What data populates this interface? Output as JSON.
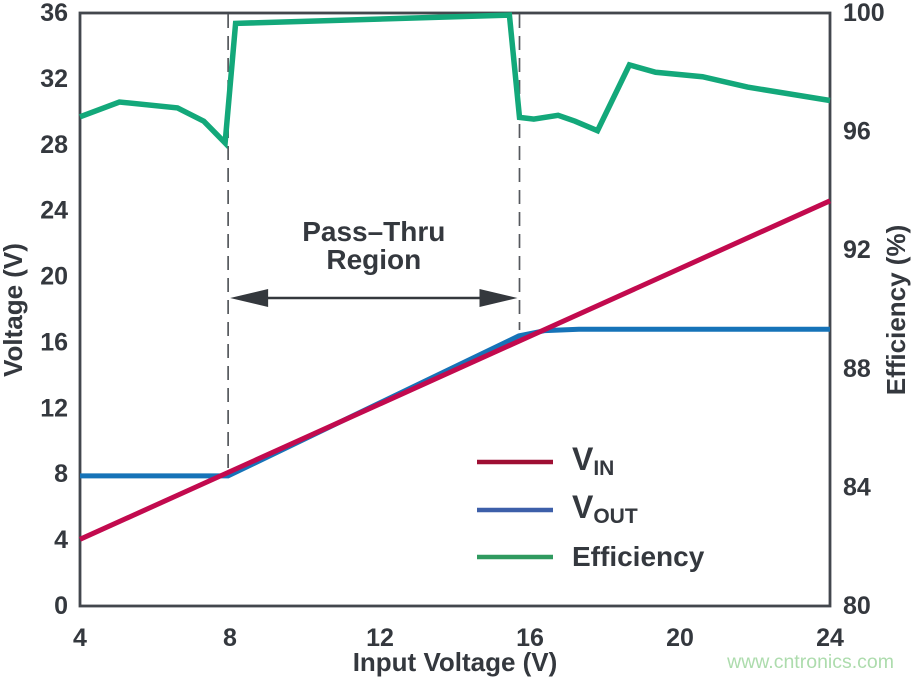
{
  "watermark": {
    "text": "www.cntronics.com",
    "color": "#addcad"
  },
  "chart_data": {
    "type": "line",
    "xlabel": "Input Voltage (V)",
    "ylabel_left": "Voltage (V)",
    "ylabel_right": "Efficiency (%)",
    "xlim": [
      4,
      24
    ],
    "ylim_left": [
      0,
      36
    ],
    "ylim_right": [
      80,
      100
    ],
    "x_ticks": [
      4,
      8,
      12,
      16,
      20,
      24
    ],
    "y_left_ticks": [
      0,
      4,
      8,
      12,
      16,
      20,
      24,
      28,
      32,
      36
    ],
    "y_right_ticks": [
      80,
      84,
      88,
      92,
      96,
      100
    ],
    "grid": false,
    "legend_position": "lower right",
    "series": [
      {
        "id": "vin",
        "axis": "left",
        "z": 2,
        "color": "#c20a4e",
        "legend_color": "#9e0f33",
        "width": 5,
        "points": [
          [
            4,
            4.05
          ],
          [
            24,
            24.6
          ]
        ]
      },
      {
        "id": "vout",
        "axis": "left",
        "z": 1,
        "color": "#1673b8",
        "legend_color": "#3d5fa9",
        "width": 5,
        "points": [
          [
            4,
            7.9
          ],
          [
            7.95,
            7.9
          ],
          [
            15.7,
            16.4
          ],
          [
            16.4,
            16.72
          ],
          [
            17.3,
            16.8
          ],
          [
            24,
            16.8
          ]
        ]
      },
      {
        "id": "efficiency",
        "axis": "right",
        "z": 3,
        "color": "#13a87a",
        "legend_color": "#2f9a5f",
        "width": 5.5,
        "points": [
          [
            4,
            96.5
          ],
          [
            5.05,
            97.0
          ],
          [
            6.6,
            96.8
          ],
          [
            7.3,
            96.35
          ],
          [
            7.87,
            95.62
          ],
          [
            8.15,
            99.65
          ],
          [
            15.45,
            99.93
          ],
          [
            15.72,
            96.48
          ],
          [
            16.1,
            96.42
          ],
          [
            16.75,
            96.55
          ],
          [
            17.2,
            96.35
          ],
          [
            17.8,
            96.03
          ],
          [
            18.65,
            98.25
          ],
          [
            19.35,
            98.0
          ],
          [
            20.6,
            97.85
          ],
          [
            21.8,
            97.5
          ],
          [
            24,
            97.05
          ]
        ]
      }
    ],
    "legend": [
      {
        "main": "V",
        "sub": "IN"
      },
      {
        "main": "V",
        "sub": "OUT"
      },
      {
        "main": "Efficiency",
        "sub": ""
      }
    ],
    "annotation": {
      "line1": "Pass–Thru",
      "line2": "Region",
      "x_from": 7.95,
      "x_to": 15.72
    }
  }
}
